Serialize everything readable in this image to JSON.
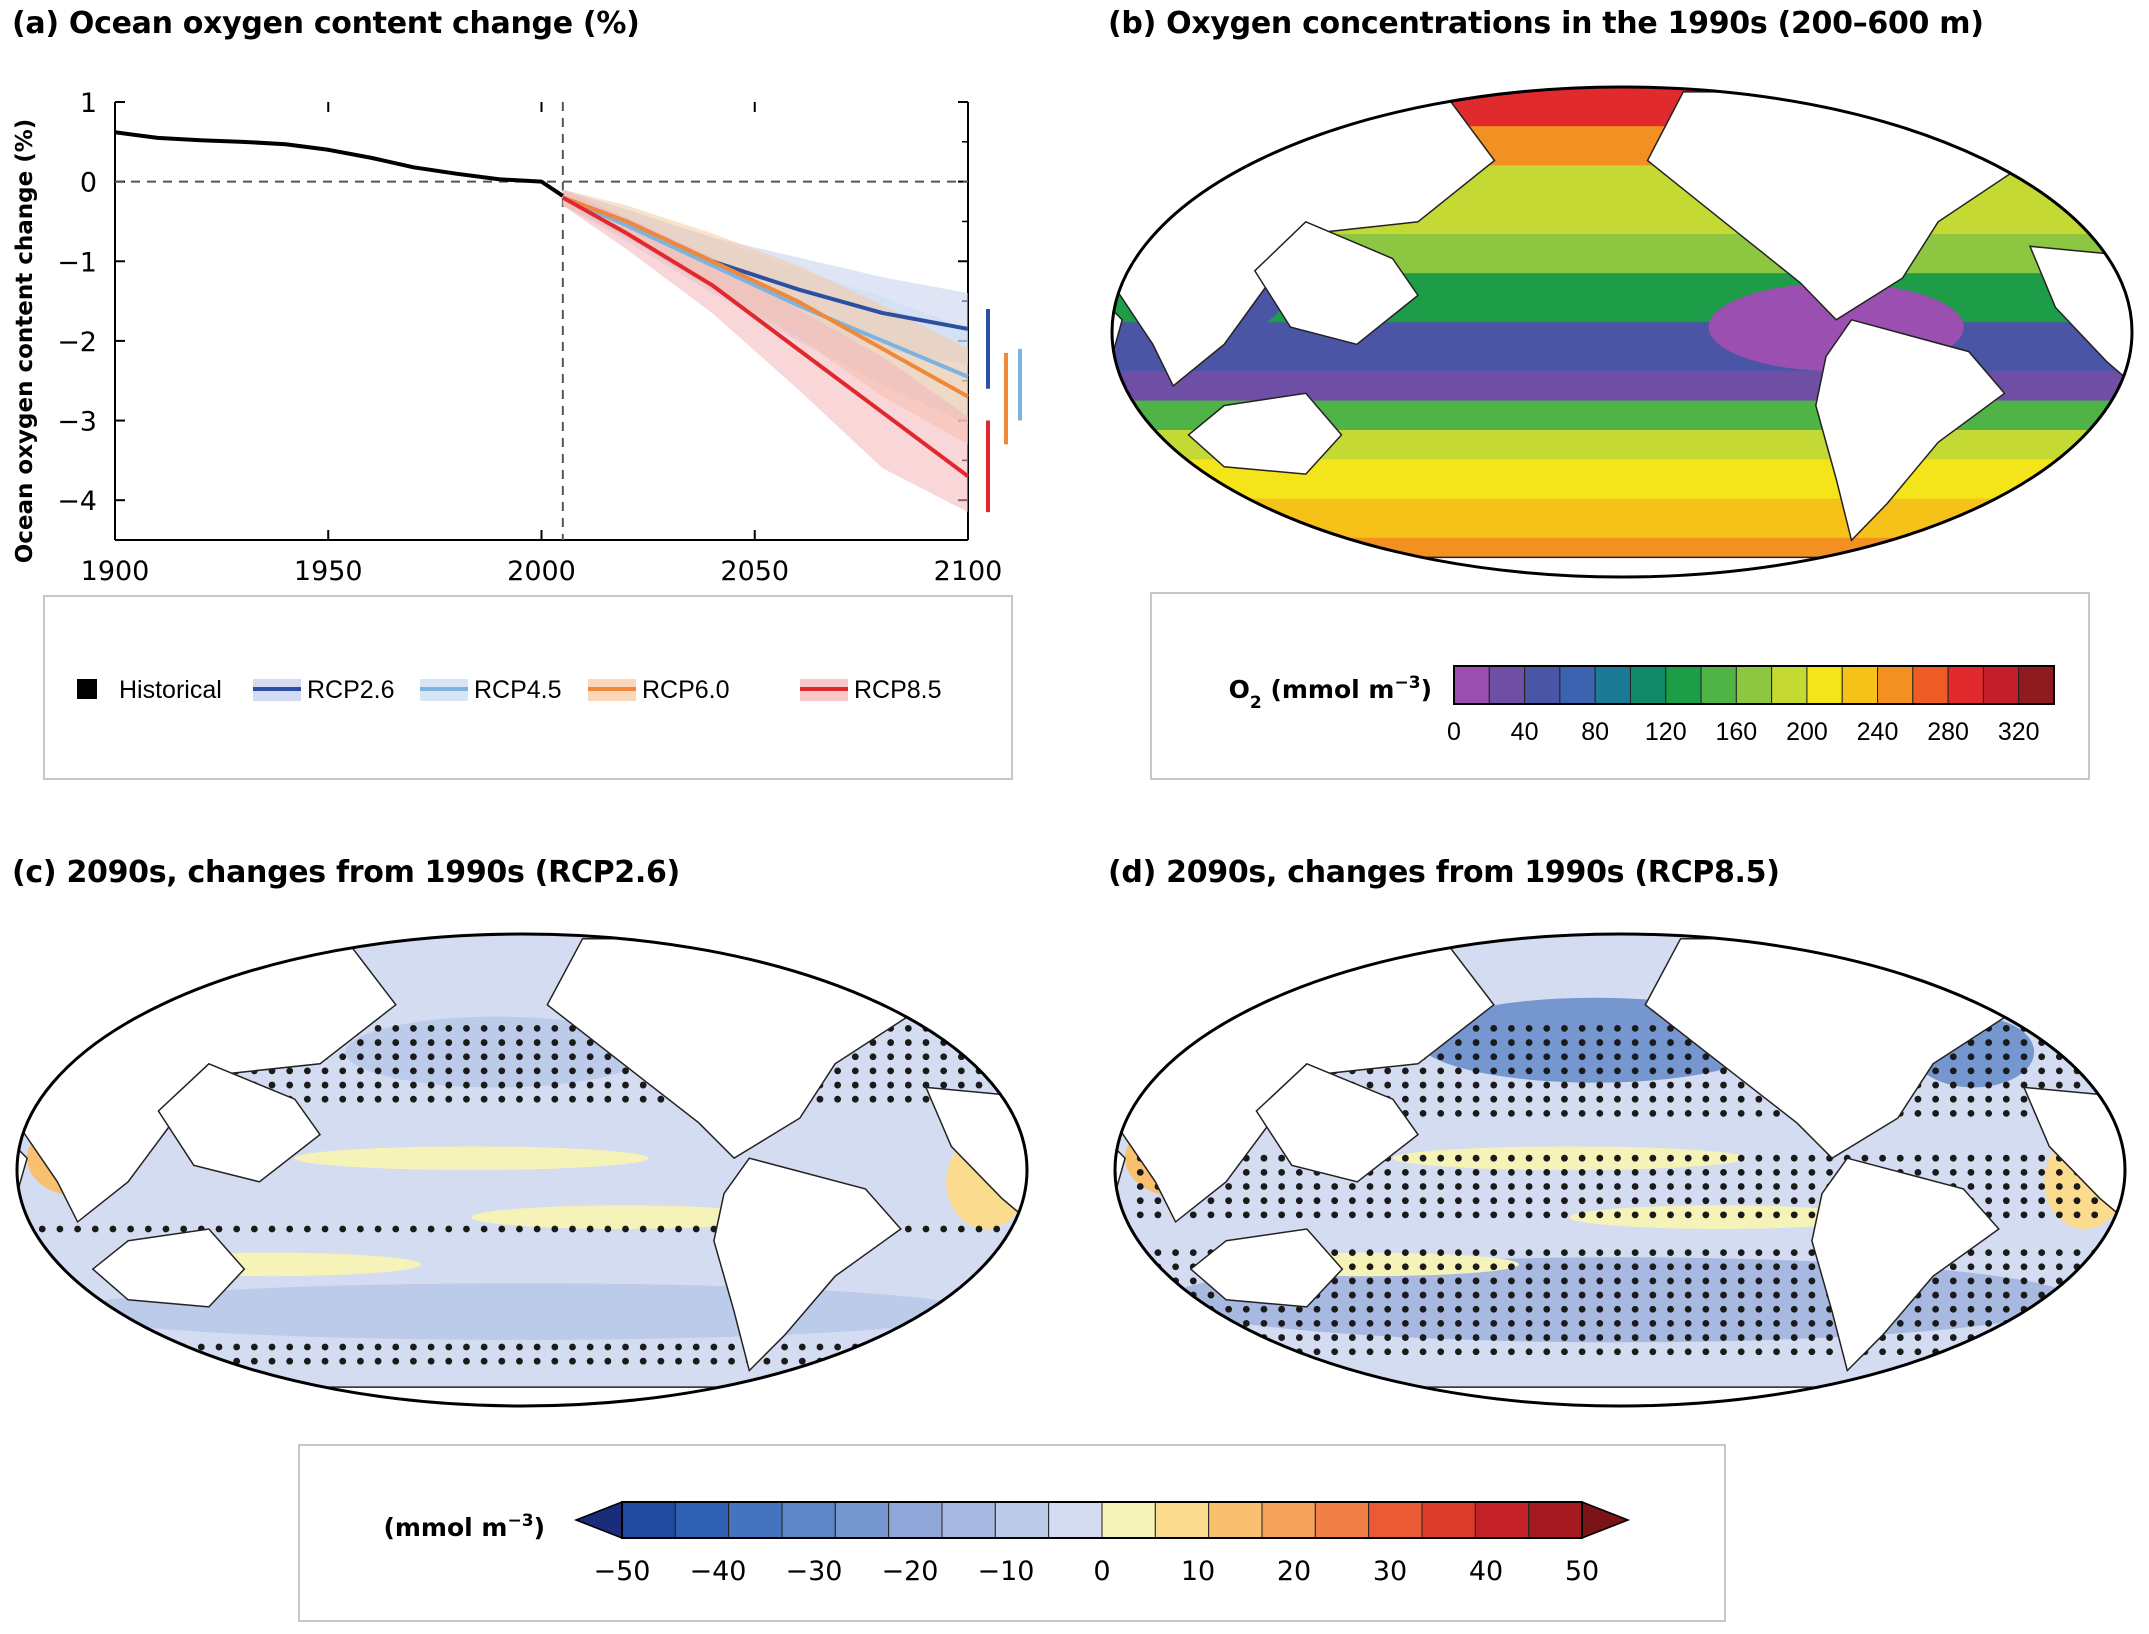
{
  "panels": {
    "a_title": "(a) Ocean oxygen content change (%)",
    "b_title": "(b) Oxygen concentrations in the 1990s (200–600 m)",
    "c_title": "(c) 2090s, changes from 1990s (RCP2.6)",
    "d_title": "(d) 2090s, changes from 1990s (RCP8.5)"
  },
  "chart_data": [
    {
      "type": "line",
      "title": "(a) Ocean oxygen content change (%)",
      "ylabel": "Ocean oxygen content change (%)",
      "xlabel": "",
      "xlim": [
        1900,
        2100
      ],
      "ylim": [
        -4.5,
        1
      ],
      "xticks": [
        1900,
        1950,
        2000,
        2050,
        2100
      ],
      "yticks": [
        1,
        0,
        -1,
        -2,
        -3,
        -4
      ],
      "grid": false,
      "reference_lines": {
        "y": 0,
        "x": 2005
      },
      "legend_position": "bottom (separate box)",
      "series": [
        {
          "name": "Historical",
          "color": "#000000",
          "x": [
            1900,
            1910,
            1920,
            1930,
            1940,
            1950,
            1960,
            1970,
            1980,
            1990,
            2000,
            2005
          ],
          "y": [
            0.62,
            0.55,
            0.52,
            0.5,
            0.47,
            0.4,
            0.3,
            0.18,
            0.1,
            0.03,
            0.0,
            -0.18
          ]
        },
        {
          "name": "RCP2.6",
          "color": "#2a4fa3",
          "band": "#c7d0ee",
          "x": [
            2005,
            2020,
            2040,
            2060,
            2080,
            2100
          ],
          "y": [
            -0.2,
            -0.5,
            -1.0,
            -1.35,
            -1.65,
            -1.85
          ],
          "lower": [
            -0.3,
            -0.7,
            -1.35,
            -1.8,
            -2.1,
            -2.3
          ],
          "upper": [
            -0.1,
            -0.35,
            -0.7,
            -0.95,
            -1.2,
            -1.4
          ],
          "range_bar": [
            -1.6,
            -2.6
          ]
        },
        {
          "name": "RCP4.5",
          "color": "#7db3e0",
          "band": "#cadcf0",
          "x": [
            2005,
            2020,
            2040,
            2060,
            2080,
            2100
          ],
          "y": [
            -0.2,
            -0.55,
            -1.05,
            -1.55,
            -2.0,
            -2.45
          ],
          "lower": [
            -0.3,
            -0.75,
            -1.4,
            -2.0,
            -2.55,
            -3.05
          ],
          "upper": [
            -0.1,
            -0.35,
            -0.7,
            -1.1,
            -1.45,
            -1.85
          ],
          "range_bar": [
            -2.1,
            -3.0
          ]
        },
        {
          "name": "RCP6.0",
          "color": "#f0883a",
          "band": "#f8caa0",
          "x": [
            2005,
            2020,
            2040,
            2060,
            2080,
            2100
          ],
          "y": [
            -0.2,
            -0.5,
            -1.0,
            -1.5,
            -2.1,
            -2.7
          ],
          "lower": [
            -0.3,
            -0.7,
            -1.35,
            -1.95,
            -2.7,
            -3.3
          ],
          "upper": [
            -0.1,
            -0.3,
            -0.65,
            -1.05,
            -1.55,
            -2.1
          ],
          "range_bar": [
            -2.15,
            -3.3
          ]
        },
        {
          "name": "RCP8.5",
          "color": "#e0282e",
          "band": "#f4b4b8",
          "x": [
            2005,
            2020,
            2040,
            2060,
            2080,
            2100
          ],
          "y": [
            -0.2,
            -0.65,
            -1.3,
            -2.1,
            -2.9,
            -3.7
          ],
          "lower": [
            -0.3,
            -0.85,
            -1.65,
            -2.6,
            -3.6,
            -4.15
          ],
          "upper": [
            -0.1,
            -0.45,
            -0.95,
            -1.6,
            -2.2,
            -2.95
          ],
          "range_bar": [
            -3.0,
            -4.15
          ]
        }
      ]
    },
    {
      "type": "heatmap",
      "title": "(b) Oxygen concentrations in the 1990s (200–600 m)",
      "colorbar_label": "O₂ (mmol m⁻³)",
      "colorbar_ticks": [
        "0",
        "40",
        "80",
        "120",
        "160",
        "200",
        "240",
        "280",
        "320"
      ],
      "colorbar_range": [
        0,
        340
      ],
      "colors": [
        "#9b4fb0",
        "#6f4fa6",
        "#4a55a5",
        "#3c62b0",
        "#1d7a96",
        "#128a6a",
        "#1e9d48",
        "#4fb348",
        "#8dc641",
        "#c5d934",
        "#f3e51a",
        "#f6c219",
        "#f29022",
        "#ed5b27",
        "#e12a2d",
        "#c21f2b",
        "#8e1b1f"
      ]
    },
    {
      "type": "heatmap",
      "title": "(c) 2090s, changes from 1990s (RCP2.6)"
    },
    {
      "type": "heatmap",
      "title": "(d) 2090s, changes from 1990s (RCP8.5)"
    },
    {
      "type": "heatmap",
      "colorbar_label": "(mmol m⁻³)",
      "colorbar_ticks": [
        "−50",
        "−40",
        "−30",
        "−20",
        "−10",
        "0",
        "10",
        "20",
        "30",
        "40",
        "50"
      ],
      "colorbar_range": [
        -50,
        50
      ],
      "colors": [
        "#1b2d7a",
        "#1f4aa0",
        "#2f5fb2",
        "#4474c0",
        "#5c86c8",
        "#7596cf",
        "#8ea7d8",
        "#a7b9e0",
        "#bccbea",
        "#d3dcf0",
        "#f6f3b8",
        "#fbdc8f",
        "#f9c070",
        "#f7a25a",
        "#f27f45",
        "#ea5a34",
        "#dc3a2b",
        "#c42228",
        "#a51a21",
        "#7a1417"
      ]
    }
  ],
  "legend_a": [
    {
      "label": "Historical",
      "color": "#000000"
    },
    {
      "label": "RCP2.6",
      "color": "#2a4fa3",
      "band": "#c7d0ee"
    },
    {
      "label": "RCP4.5",
      "color": "#7db3e0",
      "band": "#cadcf0"
    },
    {
      "label": "RCP6.0",
      "color": "#f0883a",
      "band": "#f8caa0"
    },
    {
      "label": "RCP8.5",
      "color": "#e0282e",
      "band": "#f4b4b8"
    }
  ],
  "colorbar_b": {
    "label_prefix": "O",
    "label_sub": "2",
    "label_suffix": " (mmol m",
    "label_sup": "−3",
    "label_end": ")"
  },
  "colorbar_cd": {
    "label_prefix": "(mmol m",
    "label_sup": "−3",
    "label_end": ")"
  }
}
